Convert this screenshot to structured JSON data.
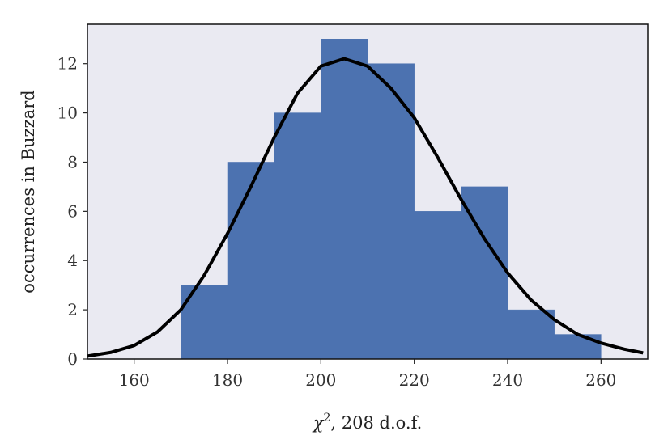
{
  "chart_data": {
    "type": "bar",
    "subtype": "histogram with fitted curve",
    "title": "",
    "xlabel": "χ², 208 d.o.f.",
    "xlabel_parts": {
      "symbol": "χ",
      "superscript": "2",
      "rest": ", 208 d.o.f."
    },
    "ylabel": "occurrences in Buzzard",
    "xlim": [
      150,
      270
    ],
    "ylim": [
      0,
      13.6
    ],
    "xticks": [
      160,
      180,
      200,
      220,
      240,
      260
    ],
    "yticks": [
      0,
      2,
      4,
      6,
      8,
      10,
      12
    ],
    "grid": false,
    "colors": {
      "background": "#eaeaf2",
      "bars": "#4c72b0",
      "curve": "#000000"
    },
    "series": [
      {
        "type": "histogram",
        "bin_edges": [
          170,
          180,
          190,
          200,
          210,
          220,
          230,
          240,
          250,
          260
        ],
        "counts": [
          3,
          8,
          10,
          13,
          12,
          6,
          7,
          2,
          1
        ]
      },
      {
        "type": "line",
        "x": [
          150,
          155,
          160,
          165,
          170,
          175,
          180,
          185,
          190,
          195,
          200,
          205,
          210,
          215,
          220,
          225,
          230,
          235,
          240,
          245,
          250,
          255,
          260,
          265,
          269
        ],
        "y": [
          0.12,
          0.27,
          0.55,
          1.1,
          2.0,
          3.4,
          5.1,
          7.0,
          9.0,
          10.8,
          11.9,
          12.2,
          11.9,
          11.0,
          9.8,
          8.2,
          6.5,
          4.9,
          3.5,
          2.4,
          1.6,
          1.0,
          0.65,
          0.4,
          0.25
        ]
      }
    ]
  }
}
